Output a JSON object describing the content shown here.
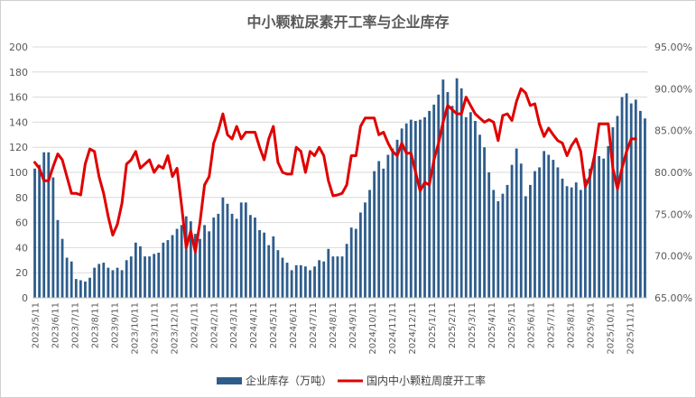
{
  "chart_data": {
    "type": "bar+line",
    "title": "中小颗粒尿素开工率与企业库存",
    "left_axis": {
      "min": 0,
      "max": 200,
      "step": 20
    },
    "right_axis": {
      "min": 65,
      "max": 95,
      "step": 5,
      "suffix": ".00%"
    },
    "x_tick_labels": [
      "2023/5/11",
      "2023/6/11",
      "2023/7/11",
      "2023/8/11",
      "2023/9/11",
      "2023/10/11",
      "2023/11/11",
      "2023/12/11",
      "2024/1/11",
      "2024/2/11",
      "2024/3/11",
      "2024/4/11",
      "2024/5/11",
      "2024/6/11",
      "2024/7/11",
      "2024/8/11",
      "2024/9/11",
      "2024/10/11",
      "2024/11/11",
      "2024/12/11",
      "2025/1/11",
      "2025/2/11",
      "2025/3/11",
      "2025/4/11",
      "2025/5/11",
      "2025/6/11",
      "2025/7/11",
      "2025/8/11",
      "2025/9/11",
      "2025/10/11",
      "2025/11/11"
    ],
    "series": [
      {
        "name": "企业库存（万吨）",
        "type": "bar",
        "axis": "left",
        "color": "#2e5d8c",
        "values": [
          103,
          106,
          116,
          116,
          96,
          62,
          47,
          32,
          29,
          15,
          14,
          13,
          16,
          24,
          27,
          28,
          24,
          22,
          24,
          22,
          30,
          33,
          44,
          41,
          33,
          33,
          35,
          36,
          44,
          46,
          50,
          55,
          58,
          65,
          61,
          51,
          47,
          58,
          53,
          64,
          67,
          80,
          75,
          67,
          63,
          76,
          76,
          66,
          64,
          54,
          52,
          42,
          49,
          38,
          32,
          28,
          22,
          26,
          26,
          25,
          22,
          25,
          30,
          29,
          39,
          33,
          33,
          33,
          43,
          56,
          55,
          68,
          76,
          86,
          101,
          109,
          103,
          114,
          119,
          126,
          135,
          139,
          142,
          141,
          142,
          144,
          149,
          154,
          162,
          174,
          164,
          153,
          175,
          167,
          144,
          148,
          141,
          130,
          120,
          100,
          86,
          77,
          83,
          90,
          106,
          119,
          107,
          81,
          90,
          101,
          104,
          117,
          114,
          110,
          104,
          95,
          89,
          88,
          92,
          86,
          95,
          103,
          113,
          113,
          111,
          121,
          136,
          145,
          160,
          163,
          155,
          158,
          149,
          143
        ]
      },
      {
        "name": "国内中小颗粒周度开工率",
        "type": "line",
        "axis": "right",
        "color": "#e00000",
        "values": [
          81.2,
          80.5,
          79,
          79,
          80.7,
          82.2,
          81.5,
          79.5,
          77.5,
          77.5,
          77.3,
          81,
          82.8,
          82.5,
          79.5,
          77.5,
          74.7,
          72.5,
          73.8,
          76.3,
          81,
          81.5,
          82.5,
          80.5,
          81,
          81.5,
          80,
          80.8,
          80.5,
          82,
          79.5,
          80.5,
          76,
          71,
          73,
          70.5,
          74,
          78.5,
          79.5,
          83.5,
          85,
          87,
          84.5,
          84,
          85.5,
          84,
          84.8,
          84.8,
          84.8,
          83,
          81.5,
          84,
          85.5,
          81.2,
          80,
          79.8,
          79.8,
          83,
          82.5,
          80,
          82.5,
          82,
          83,
          82,
          79,
          77.2,
          77.3,
          77.5,
          78.5,
          82,
          82,
          85.5,
          86.5,
          86.5,
          86.5,
          84.5,
          84.8,
          83.5,
          82.5,
          82,
          83.5,
          82.3,
          82.3,
          80,
          77.8,
          78.8,
          78.5,
          81.5,
          83.5,
          86,
          88,
          87.5,
          87,
          87,
          89,
          88,
          87,
          86.5,
          86,
          86.3,
          86,
          83.8,
          86.8,
          87,
          86.2,
          88.5,
          90,
          89.5,
          88,
          88.2,
          85.8,
          84.3,
          85.3,
          84.5,
          83.8,
          83.5,
          82,
          83.2,
          84,
          82.5,
          78.3,
          79.5,
          82,
          85.8,
          85.8,
          85.8,
          80.5,
          78,
          80.5,
          82.5,
          84,
          84
        ]
      }
    ]
  }
}
